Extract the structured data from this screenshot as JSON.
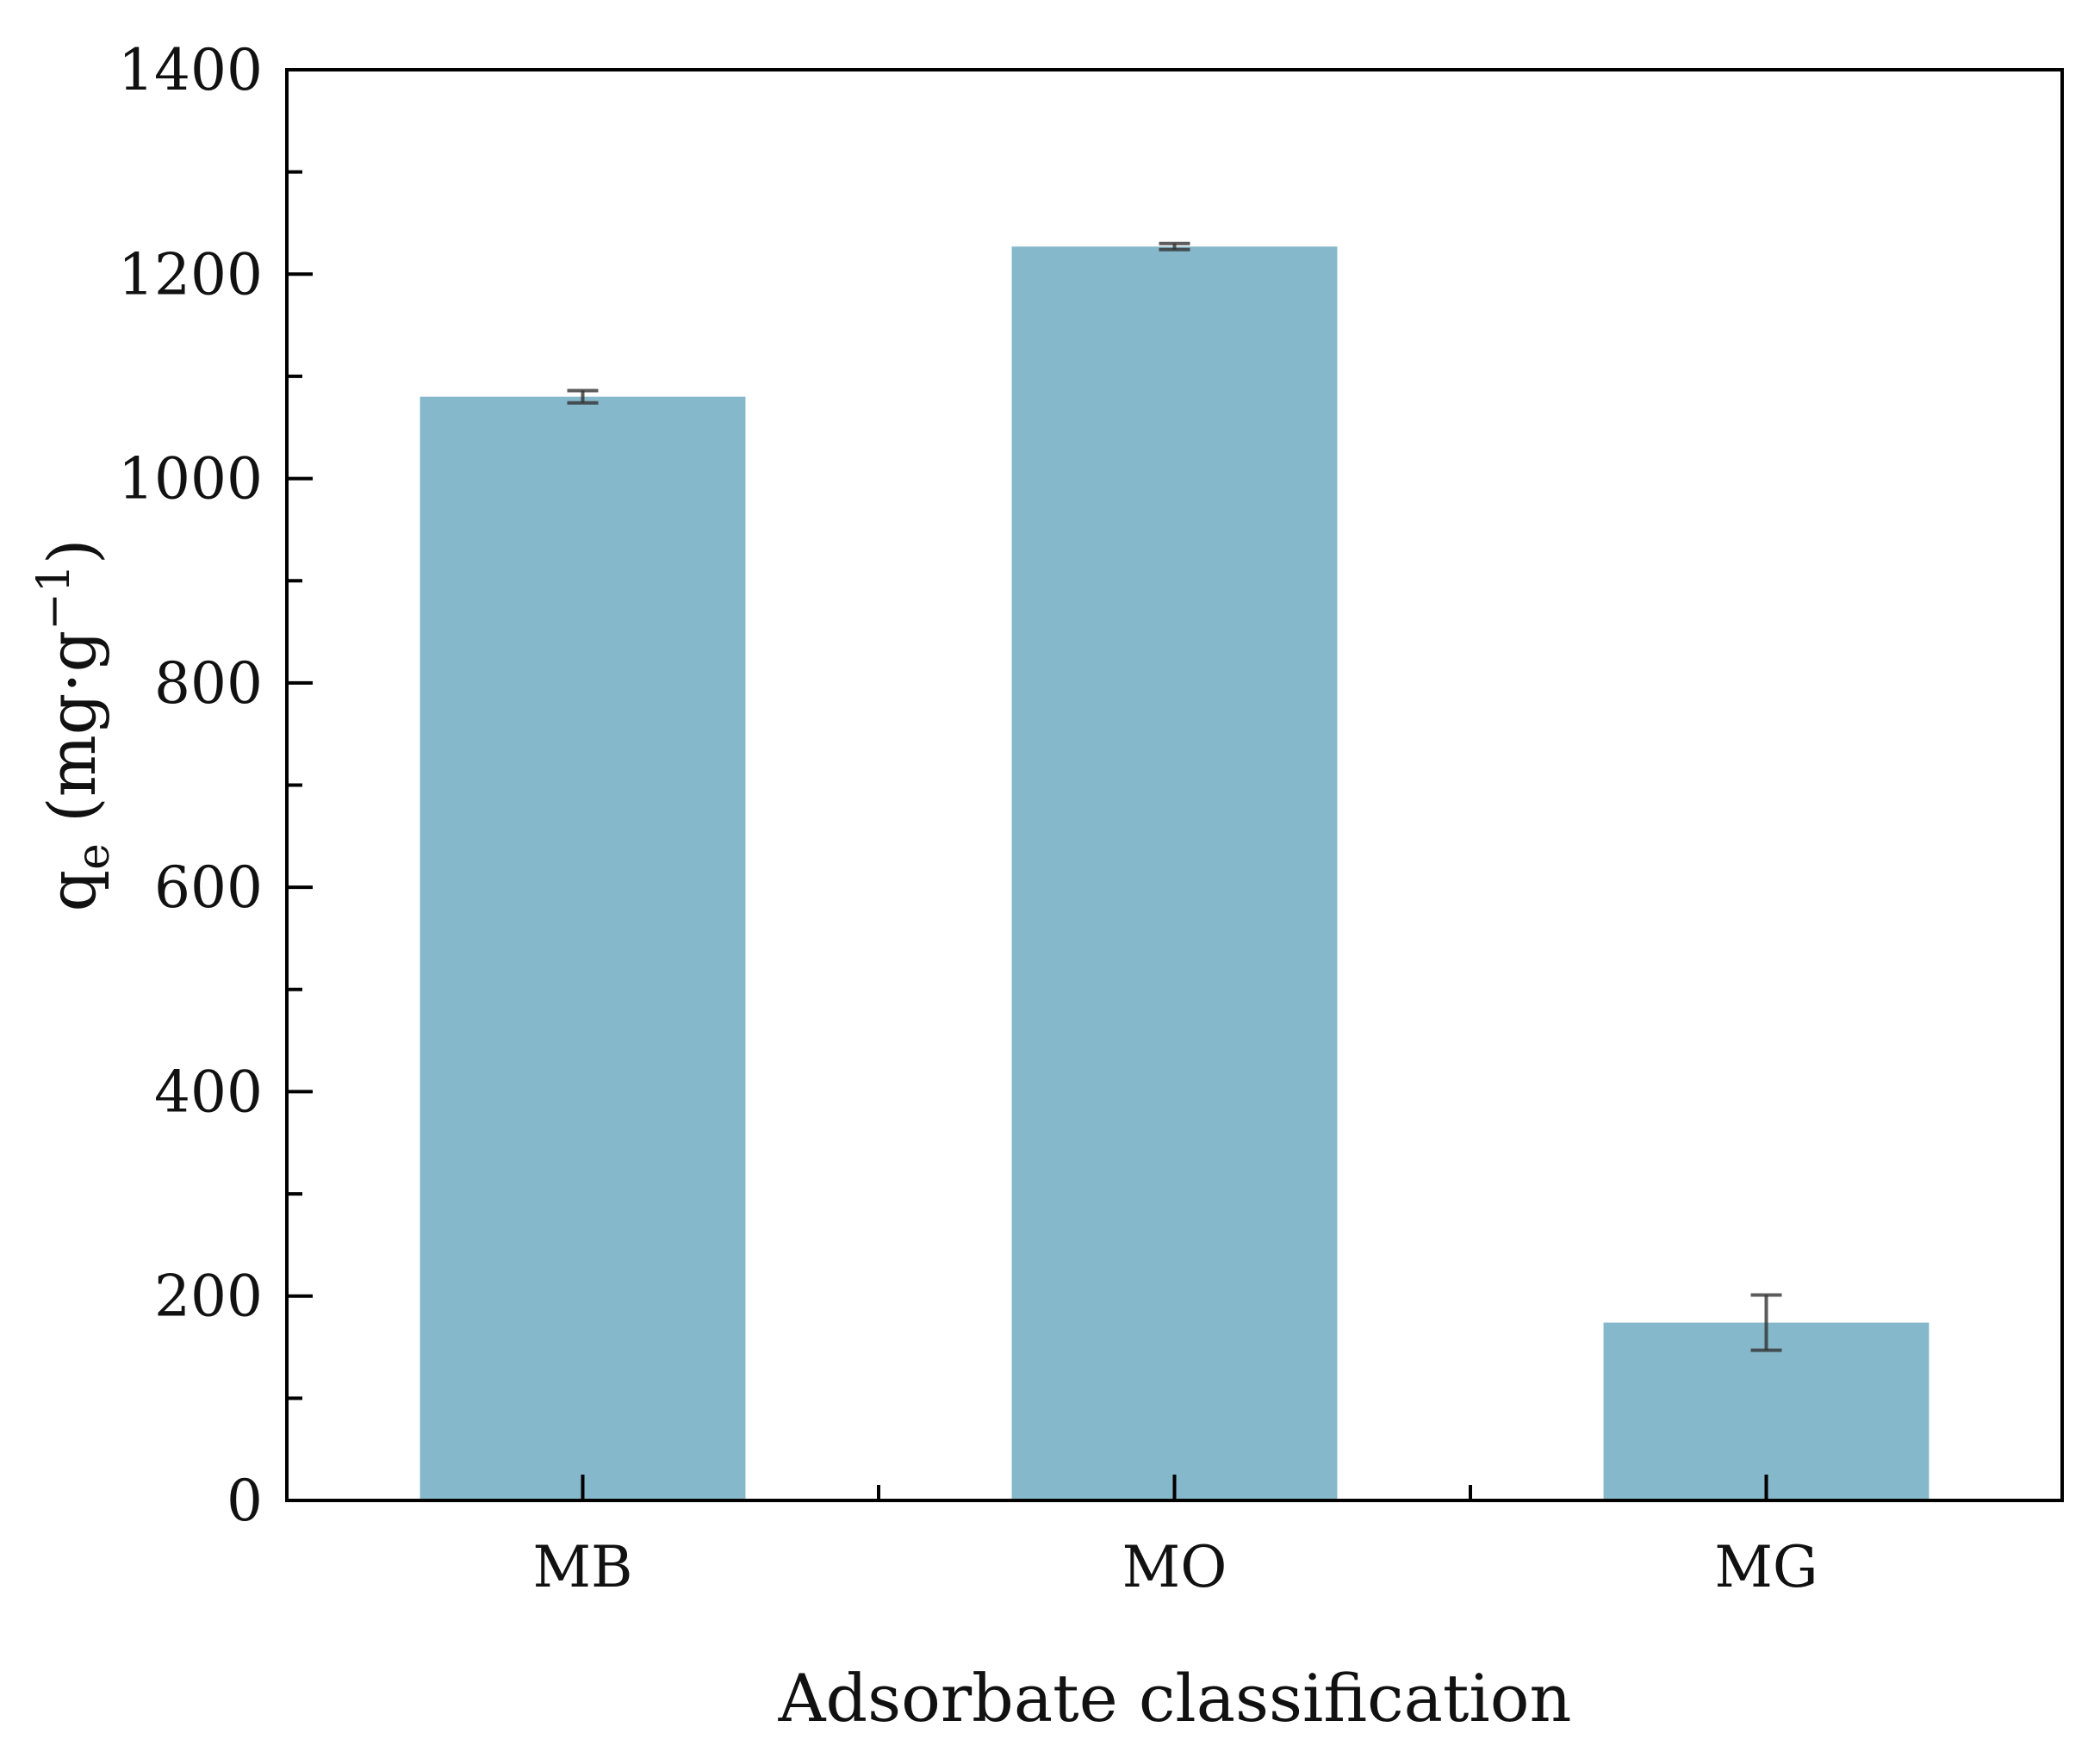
{
  "chart_data": {
    "type": "bar",
    "title": "",
    "xlabel": "Adsorbate classification",
    "ylabel": {
      "main": "q",
      "subscript": "e",
      "unit_open": " (mg·g",
      "unit_sup": "−1",
      "unit_close": ")"
    },
    "categories": [
      "MB",
      "MO",
      "MG"
    ],
    "values": [
      1080,
      1227,
      174
    ],
    "errors": [
      6,
      3,
      27
    ],
    "ylim": [
      0,
      1400
    ],
    "yticks": [
      0,
      200,
      400,
      600,
      800,
      1000,
      1200,
      1400
    ],
    "ytick_labels": [
      "0",
      "200",
      "400",
      "600",
      "800",
      "1000",
      "1200",
      "1400"
    ],
    "grid": false,
    "legend": "none",
    "bar_color": "#85b8cb",
    "errorbar_color": "#333333",
    "axis_color": "#000000"
  }
}
